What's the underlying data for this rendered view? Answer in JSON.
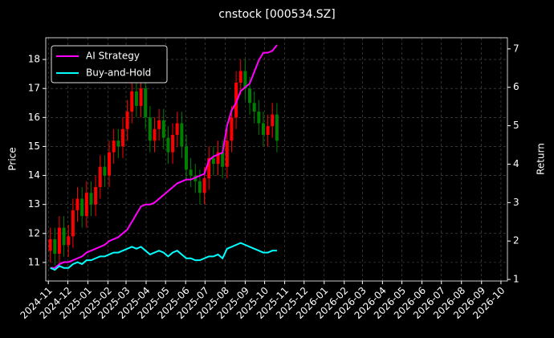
{
  "chart_data": {
    "type": "candlestick",
    "title": "cnstock [000534.SZ]",
    "ylabel": "Price",
    "y2label": "Return",
    "x": [
      "2024-11-04",
      "2024-11-11",
      "2024-11-18",
      "2024-11-25",
      "2024-12-02",
      "2024-12-09",
      "2024-12-16",
      "2024-12-23",
      "2024-12-30",
      "2025-01-06",
      "2025-01-13",
      "2025-01-20",
      "2025-01-27",
      "2025-02-03",
      "2025-02-10",
      "2025-02-17",
      "2025-02-24",
      "2025-03-03",
      "2025-03-10",
      "2025-03-17",
      "2025-03-24",
      "2025-03-31",
      "2025-04-07",
      "2025-04-14",
      "2025-04-21",
      "2025-04-28",
      "2025-05-05",
      "2025-05-12",
      "2025-05-19",
      "2025-05-26",
      "2025-06-02",
      "2025-06-09",
      "2025-06-16",
      "2025-06-23",
      "2025-06-30",
      "2025-07-07",
      "2025-07-14",
      "2025-07-21",
      "2025-07-28",
      "2025-08-04",
      "2025-08-11",
      "2025-08-18",
      "2025-08-25",
      "2025-09-01",
      "2025-09-08",
      "2025-09-15",
      "2025-09-22",
      "2025-09-29",
      "2025-10-06",
      "2025-10-13",
      "2025-10-20"
    ],
    "open": [
      11.4,
      11.8,
      11.3,
      12.2,
      11.6,
      11.9,
      12.8,
      13.2,
      12.6,
      13.4,
      13.0,
      13.6,
      14.3,
      14.0,
      14.8,
      15.2,
      15.0,
      15.6,
      16.2,
      16.9,
      16.4,
      17.0,
      16.0,
      15.2,
      15.6,
      15.9,
      15.3,
      14.8,
      15.4,
      15.8,
      15.0,
      14.2,
      14.0,
      13.8,
      13.4,
      13.9,
      14.6,
      14.4,
      14.8,
      14.3,
      15.2,
      16.0,
      17.2,
      17.6,
      17.0,
      16.5,
      16.2,
      15.8,
      15.4,
      15.7,
      16.1
    ],
    "high": [
      12.2,
      12.2,
      12.6,
      12.6,
      12.3,
      13.2,
      13.6,
      13.6,
      13.8,
      13.8,
      14.0,
      14.7,
      14.7,
      15.2,
      15.6,
      15.6,
      16.0,
      16.6,
      17.3,
      17.3,
      17.5,
      17.4,
      16.4,
      16.0,
      16.3,
      16.3,
      15.7,
      15.8,
      16.2,
      16.2,
      15.4,
      14.6,
      14.4,
      14.2,
      14.3,
      15.0,
      15.0,
      15.2,
      15.2,
      15.6,
      16.4,
      17.6,
      18.0,
      18.0,
      17.4,
      16.9,
      16.6,
      16.2,
      16.1,
      16.5,
      16.5
    ],
    "low": [
      11.0,
      10.9,
      10.9,
      11.2,
      11.2,
      11.5,
      12.4,
      12.2,
      12.2,
      12.6,
      12.6,
      13.2,
      13.6,
      13.6,
      14.4,
      14.6,
      14.6,
      15.2,
      15.8,
      16.0,
      16.0,
      15.6,
      14.8,
      14.8,
      15.2,
      14.9,
      14.4,
      14.4,
      15.0,
      14.6,
      13.8,
      13.6,
      13.4,
      13.0,
      13.0,
      13.5,
      14.0,
      14.0,
      13.9,
      13.9,
      14.8,
      15.6,
      16.8,
      16.6,
      16.1,
      15.8,
      15.4,
      15.0,
      15.0,
      15.3,
      14.8
    ],
    "close": [
      11.8,
      11.3,
      12.2,
      11.6,
      11.9,
      12.8,
      13.2,
      12.6,
      13.4,
      13.0,
      13.6,
      14.3,
      14.0,
      14.8,
      15.2,
      15.0,
      15.6,
      16.2,
      16.9,
      16.4,
      17.0,
      16.0,
      15.2,
      15.6,
      15.9,
      15.3,
      14.8,
      15.4,
      15.8,
      15.0,
      14.2,
      14.0,
      13.8,
      13.4,
      13.9,
      14.6,
      14.4,
      14.8,
      14.3,
      15.2,
      16.0,
      17.2,
      17.6,
      17.0,
      16.5,
      16.2,
      15.8,
      15.4,
      15.7,
      16.1,
      15.2
    ],
    "up_color": "#ff0000",
    "down_color": "#008000",
    "series": [
      {
        "name": "AI Strategy",
        "color": "#ff00ff",
        "axis": "y2",
        "values": [
          1.3,
          1.3,
          1.4,
          1.45,
          1.45,
          1.5,
          1.55,
          1.6,
          1.7,
          1.75,
          1.8,
          1.85,
          1.9,
          2.0,
          2.05,
          2.1,
          2.2,
          2.3,
          2.5,
          2.7,
          2.9,
          2.95,
          2.95,
          3.0,
          3.1,
          3.2,
          3.3,
          3.4,
          3.5,
          3.55,
          3.6,
          3.6,
          3.65,
          3.7,
          3.75,
          4.1,
          4.2,
          4.25,
          4.3,
          5.0,
          5.4,
          5.6,
          5.9,
          6.0,
          6.1,
          6.4,
          6.7,
          6.9,
          6.9,
          6.95,
          7.1
        ]
      },
      {
        "name": "Buy-and-Hold",
        "color": "#00ffff",
        "axis": "y2",
        "values": [
          1.3,
          1.25,
          1.35,
          1.3,
          1.3,
          1.4,
          1.45,
          1.4,
          1.5,
          1.5,
          1.55,
          1.6,
          1.6,
          1.65,
          1.7,
          1.7,
          1.75,
          1.8,
          1.85,
          1.8,
          1.85,
          1.75,
          1.65,
          1.7,
          1.75,
          1.7,
          1.6,
          1.7,
          1.75,
          1.65,
          1.55,
          1.55,
          1.5,
          1.5,
          1.55,
          1.6,
          1.6,
          1.65,
          1.55,
          1.8,
          1.85,
          1.9,
          1.95,
          1.9,
          1.85,
          1.8,
          1.75,
          1.7,
          1.7,
          1.75,
          1.75
        ]
      }
    ],
    "xlim": [
      "2024-10-28",
      "2026-10-11"
    ],
    "xticks": [
      "2024-11",
      "2024-12",
      "2025-01",
      "2025-02",
      "2025-03",
      "2025-04",
      "2025-05",
      "2025-06",
      "2025-07",
      "2025-08",
      "2025-09",
      "2025-10",
      "2025-11",
      "2025-12",
      "2026-01",
      "2026-02",
      "2026-03",
      "2026-04",
      "2026-05",
      "2026-06",
      "2026-07",
      "2026-08",
      "2026-09",
      "2026-10"
    ],
    "ylim": [
      10.36,
      18.75
    ],
    "yticks": [
      11,
      12,
      13,
      14,
      15,
      16,
      17,
      18
    ],
    "y2lim": [
      0.96,
      7.29
    ],
    "y2ticks": [
      1,
      2,
      3,
      4,
      5,
      6,
      7
    ],
    "grid": true,
    "legend": "upper left"
  }
}
